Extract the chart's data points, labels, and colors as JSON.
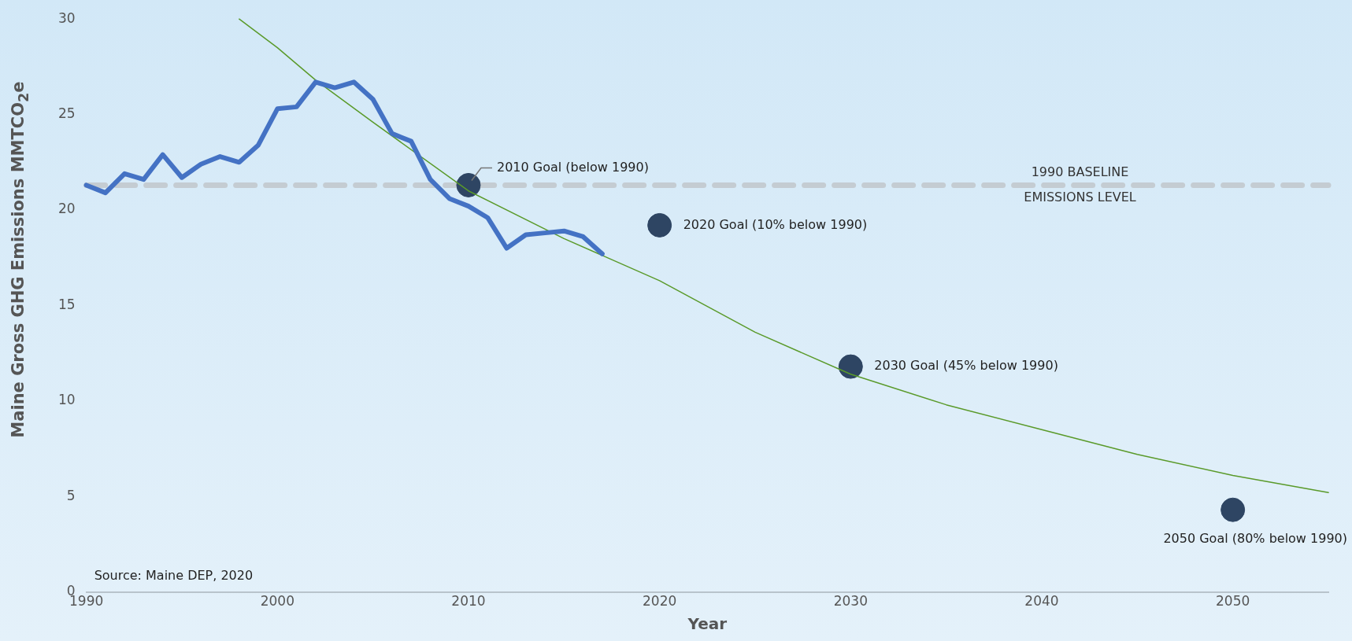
{
  "chart_data": {
    "type": "line",
    "ylabel": "Maine Gross GHG Emissions MMTCO$_{2}$e",
    "xlabel": "Year",
    "xlim": [
      1990,
      2055
    ],
    "xticks": [
      1990,
      2000,
      2010,
      2020,
      2030,
      2040,
      2050
    ],
    "ylim": [
      0,
      30
    ],
    "yticks": [
      0,
      5,
      10,
      15,
      20,
      25,
      30
    ],
    "grid": false,
    "legend": false,
    "series": [
      {
        "color": "#4472c4",
        "x": [
          1990,
          1991,
          1992,
          1993,
          1994,
          1995,
          1996,
          1997,
          1998,
          1999,
          2000,
          2001,
          2002,
          2003,
          2004,
          2005,
          2006,
          2007,
          2008,
          2009,
          2010,
          2011,
          2012,
          2013,
          2014,
          2015,
          2016,
          2017
        ],
        "values": [
          21.3,
          20.9,
          21.9,
          21.6,
          22.9,
          21.7,
          22.4,
          22.8,
          22.5,
          23.4,
          25.3,
          25.4,
          26.7,
          26.4,
          26.7,
          25.8,
          24.0,
          23.6,
          21.6,
          20.6,
          20.2,
          19.6,
          18.0,
          18.7,
          18.8,
          18.9,
          18.6,
          17.7
        ]
      },
      {
        "color": "#5a9a2a",
        "x": [
          1998,
          2000,
          2002,
          2005,
          2010,
          2015,
          2020,
          2025,
          2030,
          2035,
          2040,
          2045,
          2050,
          2055
        ],
        "values": [
          30.0,
          28.5,
          26.8,
          24.6,
          21.0,
          18.5,
          16.3,
          13.6,
          11.4,
          9.8,
          8.5,
          7.2,
          6.1,
          5.2
        ]
      },
      {
        "type": "scatter",
        "color": "#2e4563",
        "marker": "circle",
        "x": [
          2010,
          2020,
          2030,
          2050
        ],
        "values": [
          21.3,
          19.2,
          11.8,
          4.3
        ]
      }
    ],
    "ref_lines": [
      {
        "axis": "y",
        "value": 21.3,
        "label": "1990 BASELINE\nEMISSIONS LEVEL",
        "color": "#c4ccd2",
        "line_style": "dashed"
      }
    ],
    "annotations": [
      {
        "text": "2010 Goal (below 1990)",
        "x": 2010,
        "y": 21.3
      },
      {
        "text": "2020 Goal (10% below 1990)",
        "x": 2020,
        "y": 19.2
      },
      {
        "text": "2030 Goal (45% below 1990)",
        "x": 2030,
        "y": 11.8
      },
      {
        "text": "2050 Goal (80% below 1990)",
        "x": 2050,
        "y": 4.3
      },
      "Source: Maine DEP, 2020"
    ]
  }
}
